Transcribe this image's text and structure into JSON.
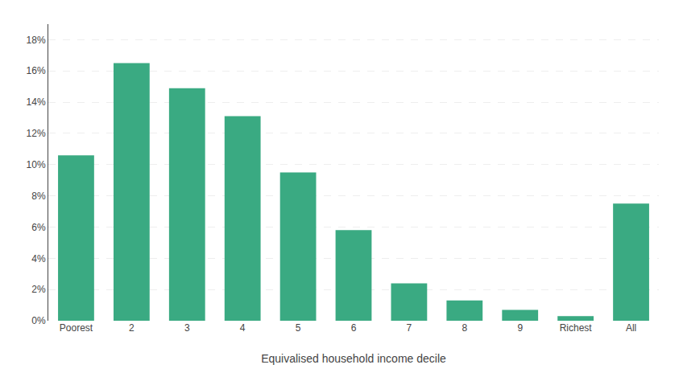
{
  "chart_data": {
    "type": "bar",
    "categories": [
      "Poorest",
      "2",
      "3",
      "4",
      "5",
      "6",
      "7",
      "8",
      "9",
      "Richest",
      "All"
    ],
    "values": [
      0.106,
      0.165,
      0.149,
      0.131,
      0.095,
      0.058,
      0.024,
      0.013,
      0.007,
      0.003,
      0.075
    ],
    "color": "#3aaa82",
    "xlabel": "Equivalised household income decile",
    "ylim": [
      0,
      0.19
    ],
    "yticks": [
      {
        "value": 0,
        "label": "0%"
      },
      {
        "value": 0.02,
        "label": "2%"
      },
      {
        "value": 0.04,
        "label": "4%"
      },
      {
        "value": 0.06,
        "label": "6%"
      },
      {
        "value": 0.08,
        "label": "8%"
      },
      {
        "value": 0.1,
        "label": "10%"
      },
      {
        "value": 0.12,
        "label": "12%"
      },
      {
        "value": 0.14,
        "label": "14%"
      },
      {
        "value": 0.16,
        "label": "16%"
      },
      {
        "value": 0.18,
        "label": "18%"
      }
    ],
    "grid": true
  }
}
